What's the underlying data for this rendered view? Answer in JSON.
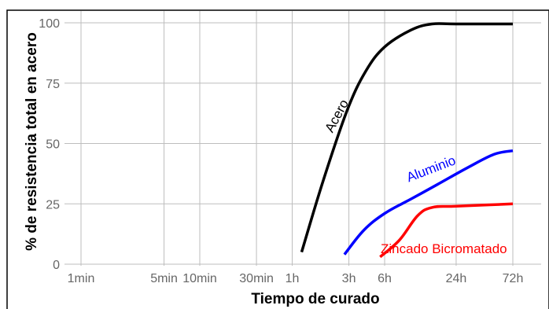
{
  "chart_data": {
    "type": "line",
    "xlabel": "Tiempo de curado",
    "ylabel": "% de resistencia total en acero",
    "x_scale": "log",
    "x_unit": "minutes",
    "x_ticks": [
      {
        "label": "1min",
        "value": 1
      },
      {
        "label": "5min",
        "value": 5
      },
      {
        "label": "10min",
        "value": 10
      },
      {
        "label": "30min",
        "value": 30
      },
      {
        "label": "1h",
        "value": 60
      },
      {
        "label": "3h",
        "value": 180
      },
      {
        "label": "6h",
        "value": 360
      },
      {
        "label": "24h",
        "value": 1440
      },
      {
        "label": "72h",
        "value": 4320
      }
    ],
    "ylim": [
      0,
      100
    ],
    "y_ticks": [
      0,
      25,
      50,
      75,
      100
    ],
    "grid": true,
    "legend": "none",
    "series": [
      {
        "name": "Acero",
        "color": "#000000",
        "points": [
          [
            72,
            5
          ],
          [
            110,
            35
          ],
          [
            175,
            64
          ],
          [
            250,
            80
          ],
          [
            360,
            90
          ],
          [
            600,
            97
          ],
          [
            900,
            99.5
          ],
          [
            1440,
            99.5
          ],
          [
            4320,
            99.5
          ]
        ]
      },
      {
        "name": "Aluminio",
        "color": "#0000ff",
        "points": [
          [
            165,
            4
          ],
          [
            240,
            14
          ],
          [
            360,
            21
          ],
          [
            600,
            27
          ],
          [
            1000,
            33
          ],
          [
            1800,
            40
          ],
          [
            3000,
            45.5
          ],
          [
            4320,
            47
          ]
        ]
      },
      {
        "name": "Zincado Bicromatado",
        "color": "#ff0000",
        "points": [
          [
            330,
            3
          ],
          [
            480,
            10
          ],
          [
            680,
            20
          ],
          [
            900,
            23.5
          ],
          [
            1440,
            24
          ],
          [
            4320,
            25
          ]
        ]
      }
    ]
  }
}
